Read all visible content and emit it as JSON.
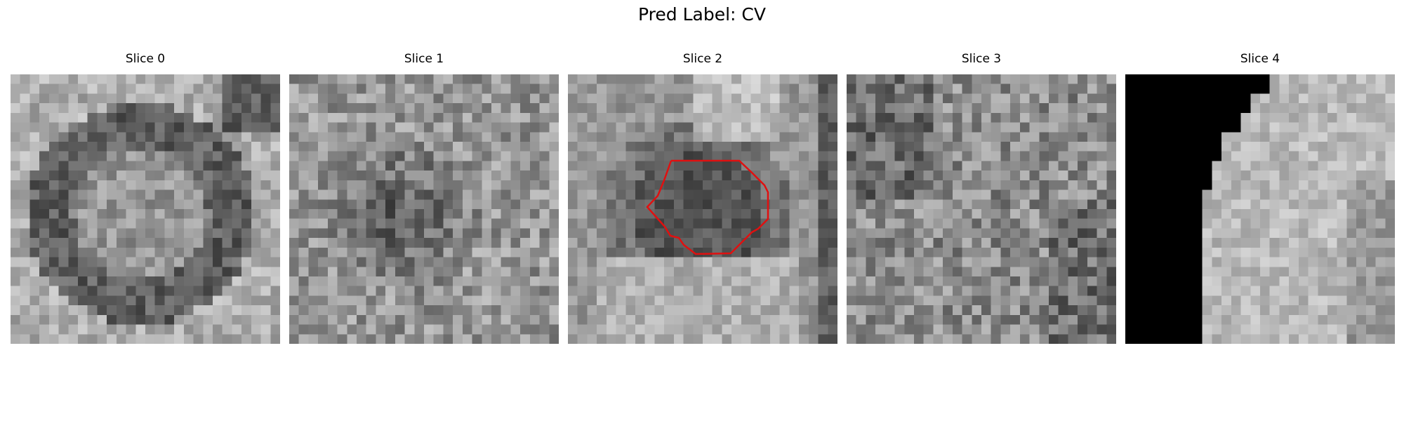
{
  "figure": {
    "title": "Pred Label: CV",
    "slices": [
      {
        "label": "Slice 0",
        "pattern": "ring-dark"
      },
      {
        "label": "Slice 1",
        "pattern": "noisy-dark-center"
      },
      {
        "label": "Slice 2",
        "pattern": "vessel-with-contour"
      },
      {
        "label": "Slice 3",
        "pattern": "noisy-uniform"
      },
      {
        "label": "Slice 4",
        "pattern": "black-mask-left"
      }
    ],
    "contour_color": "#e01010",
    "colormap": "gray"
  }
}
